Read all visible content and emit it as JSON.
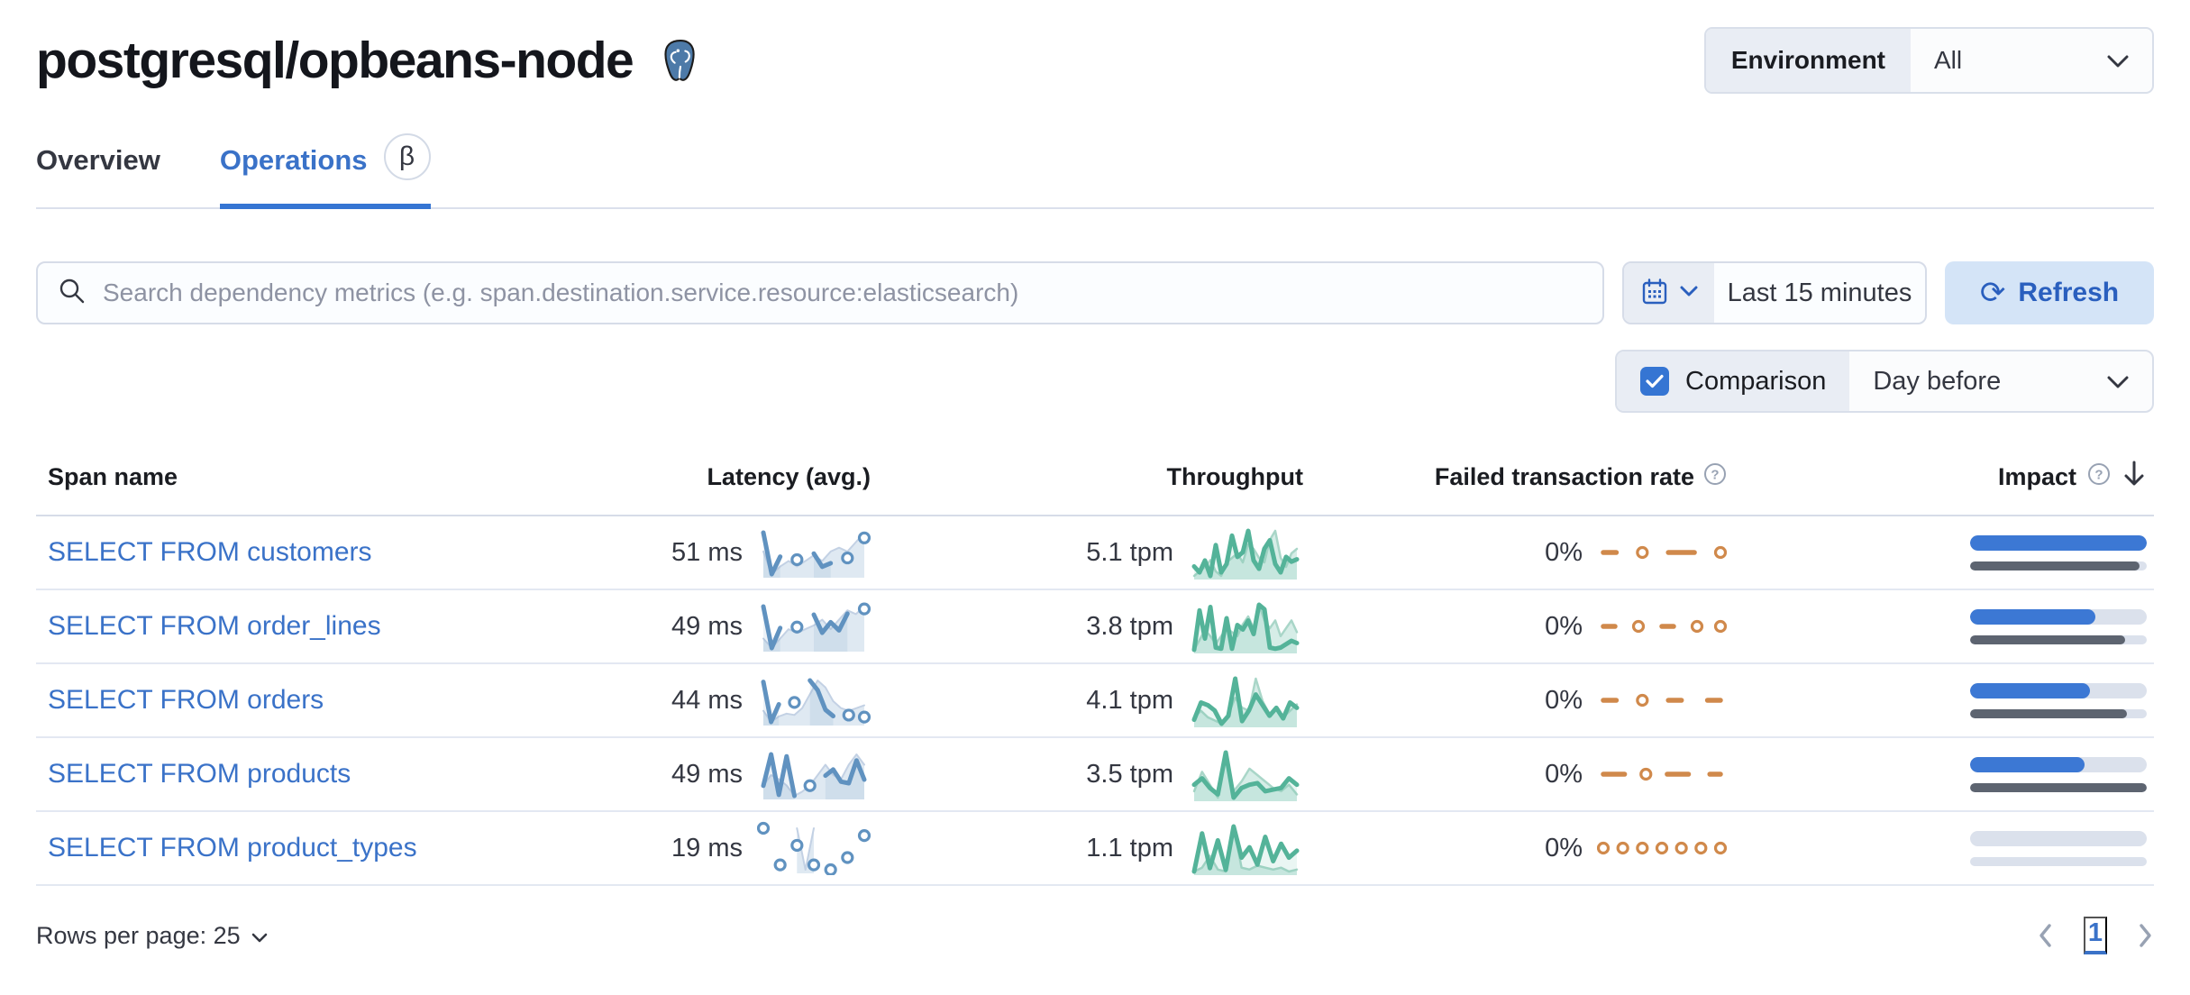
{
  "page": {
    "title": "postgresql/opbeans-node"
  },
  "header": {
    "environment_label": "Environment",
    "environment_value": "All"
  },
  "tabs": [
    {
      "label": "Overview",
      "active": false
    },
    {
      "label": "Operations",
      "active": true,
      "beta": "β"
    }
  ],
  "toolbar": {
    "search_placeholder": "Search dependency metrics (e.g. span.destination.service.resource:elasticsearch)",
    "time_range": "Last 15 minutes",
    "refresh_label": "Refresh",
    "refresh_glyph": "⟳",
    "comparison_label": "Comparison",
    "comparison_value": "Day before"
  },
  "table": {
    "columns": {
      "span_name": "Span name",
      "latency": "Latency (avg.)",
      "throughput": "Throughput",
      "failed_rate": "Failed transaction rate",
      "impact": "Impact"
    },
    "rows": [
      {
        "span_name": "SELECT FROM customers",
        "latency": "51 ms",
        "throughput": "5.1 tpm",
        "failed_rate": "0%",
        "impact_current_pct": 100,
        "impact_previous_pct": 96
      },
      {
        "span_name": "SELECT FROM order_lines",
        "latency": "49 ms",
        "throughput": "3.8 tpm",
        "failed_rate": "0%",
        "impact_current_pct": 71,
        "impact_previous_pct": 88
      },
      {
        "span_name": "SELECT FROM orders",
        "latency": "44 ms",
        "throughput": "4.1 tpm",
        "failed_rate": "0%",
        "impact_current_pct": 68,
        "impact_previous_pct": 89
      },
      {
        "span_name": "SELECT FROM products",
        "latency": "49 ms",
        "throughput": "3.5 tpm",
        "failed_rate": "0%",
        "impact_current_pct": 65,
        "impact_previous_pct": 100
      },
      {
        "span_name": "SELECT FROM product_types",
        "latency": "19 ms",
        "throughput": "1.1 tpm",
        "failed_rate": "0%",
        "impact_current_pct": 0,
        "impact_previous_pct": 0
      }
    ]
  },
  "footer": {
    "rows_per_page_label": "Rows per page: 25",
    "page_number": "1"
  },
  "colors": {
    "latency_line": "#6092C0",
    "latency_fill": "rgba(96,146,192,0.12)",
    "latency_prev_line": "#C3D1E4",
    "latency_prev_fill": "rgba(96,146,192,0.20)",
    "throughput_line": "#54B399",
    "throughput_fill": "rgba(84,179,153,0.12)",
    "throughput_prev_line": "#A9D6C8",
    "throughput_prev_fill": "rgba(84,179,153,0.24)",
    "failed_line": "#D0894B",
    "impact_bar": "#3C78D4",
    "impact_previous_bar": "#5D6470",
    "link_blue": "#3A72C8",
    "accent_blue": "#3575D3"
  },
  "chart_data": {
    "type": "sparklines",
    "note": "values normalized per sparkline; null = gap (isolated points render as circles); failed-rate series are flat 0 rendered as centered dashes/dots",
    "rows": [
      {
        "name": "SELECT FROM customers",
        "latency": {
          "value_label": "51 ms",
          "current": [
            1.0,
            0.05,
            0.45,
            null,
            0.38,
            null,
            0.52,
            0.22,
            0.3,
            null,
            0.42,
            null,
            0.88
          ],
          "previous": [
            0.3,
            0.18,
            0.22,
            0.25,
            0.22,
            0.25,
            0.28,
            0.25,
            0.3,
            0.32,
            0.3,
            0.35,
            0.4
          ]
        },
        "throughput": {
          "value_label": "5.1 tpm",
          "current": [
            2,
            1.5,
            2.5,
            1.2,
            3.8,
            1.5,
            2.2,
            4.6,
            2.8,
            3.2,
            5,
            2.5,
            1.8,
            3.5,
            4.2,
            2.2,
            1.5,
            2.8,
            2.4,
            2.6
          ],
          "previous": [
            1.8,
            2,
            2.2,
            2.5,
            2,
            1.8,
            2.4,
            2.6,
            2.8,
            2.4,
            3.2,
            3,
            2.6,
            2.4,
            3.4,
            3.8,
            2.6,
            2.2,
            2.8,
            3
          ]
        },
        "failed": {
          "value_label": "0%",
          "current": [
            0,
            0,
            null,
            0,
            null,
            0,
            0,
            0,
            null,
            0
          ]
        }
      },
      {
        "name": "SELECT FROM order_lines",
        "latency": {
          "value_label": "49 ms",
          "current": [
            0.95,
            0.08,
            0.5,
            null,
            0.52,
            null,
            0.78,
            0.4,
            0.62,
            0.45,
            0.8,
            null,
            0.9
          ],
          "previous": [
            0.25,
            0.2,
            0.25,
            0.3,
            0.28,
            0.3,
            0.32,
            0.35,
            0.3,
            0.35,
            0.4,
            0.38,
            0.42
          ]
        },
        "throughput": {
          "value_label": "3.8 tpm",
          "current": [
            1,
            4.5,
            2,
            4.8,
            1.2,
            1.1,
            3.8,
            1.1,
            3.2,
            2.8,
            3.6,
            2.4,
            5,
            4.6,
            1.2,
            1.1,
            1.2,
            1.5,
            1.8,
            1.6
          ],
          "previous": [
            1.5,
            2,
            2.5,
            2.2,
            1.8,
            2.2,
            2.6,
            2.4,
            2.2,
            2.8,
            3.2,
            2.6,
            3.8,
            3,
            2.6,
            3,
            2.2,
            2.6,
            3,
            2.4
          ]
        },
        "failed": {
          "value_label": "0%",
          "current": [
            0,
            0,
            null,
            0,
            null,
            0,
            0,
            null,
            0,
            null,
            0
          ]
        }
      },
      {
        "name": "SELECT FROM orders",
        "latency": {
          "value_label": "44 ms",
          "current": [
            0.92,
            0.1,
            0.46,
            null,
            0.5,
            null,
            0.95,
            0.75,
            0.35,
            0.22,
            null,
            0.24,
            null,
            0.2
          ],
          "previous": [
            0.28,
            0.2,
            0.24,
            0.26,
            0.25,
            0.3,
            0.4,
            0.5,
            0.45,
            0.35,
            0.3,
            0.28,
            0.3,
            0.32
          ]
        },
        "throughput": {
          "value_label": "4.1 tpm",
          "current": [
            1.5,
            2.8,
            2.6,
            2.2,
            1.2,
            1.8,
            4.6,
            1.4,
            2.2,
            3.4,
            2.6,
            1.8,
            2.4,
            1.6,
            2.8,
            2.4
          ],
          "previous": [
            2,
            2.4,
            2,
            1.8,
            1.6,
            2.2,
            3.2,
            2.6,
            2.4,
            4.4,
            3,
            2.2,
            2.6,
            2,
            2.4,
            2.8
          ]
        },
        "failed": {
          "value_label": "0%",
          "current": [
            0,
            0,
            null,
            0,
            null,
            0,
            0,
            null,
            0,
            0
          ]
        }
      },
      {
        "name": "SELECT FROM products",
        "latency": {
          "value_label": "49 ms",
          "current": [
            0.3,
            0.92,
            0.12,
            0.88,
            0.1,
            null,
            0.3,
            null,
            0.5,
            0.62,
            0.38,
            0.35,
            0.8,
            0.42
          ],
          "previous": [
            0.25,
            0.3,
            0.28,
            0.25,
            0.2,
            0.22,
            0.25,
            0.3,
            0.35,
            0.3,
            0.28,
            0.35,
            0.4,
            0.35
          ]
        },
        "throughput": {
          "value_label": "3.5 tpm",
          "current": [
            1.8,
            2.2,
            1.6,
            1.2,
            3.8,
            1,
            1.6,
            1.8,
            1.9,
            1.4,
            1.5,
            1.6,
            2.2,
            1.8
          ],
          "previous": [
            2.2,
            3.4,
            2.6,
            1.8,
            4.6,
            2.2,
            2.8,
            3.6,
            3.2,
            2.8,
            2.4,
            2.2,
            2.6,
            2
          ]
        },
        "failed": {
          "value_label": "0%",
          "current": [
            0,
            0,
            0,
            null,
            0,
            null,
            0,
            0,
            0,
            null,
            0,
            0
          ]
        }
      },
      {
        "name": "SELECT FROM product_types",
        "latency": {
          "value_label": "19 ms",
          "current": [
            0.45,
            null,
            0.3,
            null,
            0.38,
            null,
            0.3,
            null,
            0.28,
            null,
            0.33,
            null,
            0.42
          ],
          "previous": [
            null,
            null,
            null,
            null,
            0.8,
            0.72,
            0.8,
            null,
            null,
            null,
            null,
            null,
            null
          ]
        },
        "throughput": {
          "value_label": "1.1 tpm",
          "current": [
            0.1,
            1.2,
            0.2,
            1,
            0.15,
            1.4,
            0.5,
            0.8,
            0.3,
            1.1,
            0.4,
            0.9,
            0.5,
            0.7
          ],
          "previous": [
            0.3,
            0.5,
            1.1,
            0.4,
            0.3,
            2.6,
            0.5,
            0.4,
            0.6,
            0.5,
            0.4,
            0.5,
            0.3,
            0.4
          ]
        },
        "failed": {
          "value_label": "0%",
          "current": [
            0,
            null,
            0,
            null,
            0,
            null,
            0,
            null,
            0,
            null,
            0,
            null,
            0
          ]
        }
      }
    ]
  }
}
